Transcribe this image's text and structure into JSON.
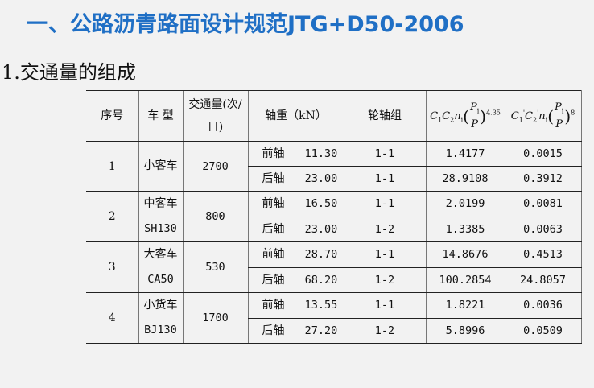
{
  "slide_title": "一、公路沥青路面设计规范JTG+D50-2006",
  "section_title": "1.交通量的组成",
  "table": {
    "headers": {
      "no": "序号",
      "type": "车 型",
      "volume_l1": "交通量(次/",
      "volume_l2": "日)",
      "axle_load": "轴重（kN）",
      "axle_group": "轮轴组",
      "formula1": {
        "c1": "C",
        "s1": "1",
        "c2": "C",
        "s2": "2",
        "n": "n",
        "ni": "i",
        "pi": "P",
        "pis": "i",
        "p": "P",
        "exp": "4.35"
      },
      "formula2": {
        "c1": "C",
        "s1": "1",
        "sup1": "'",
        "c2": "C",
        "s2": "2",
        "sup2": "'",
        "n": "n",
        "ni": "i",
        "pi": "P",
        "pis": "i",
        "p": "P",
        "exp": "8"
      }
    },
    "groups": [
      {
        "no": "1",
        "type_l1": "小客车",
        "type_l2": "",
        "volume": "2700",
        "rows": [
          {
            "axle": "前轴",
            "load": "11.30",
            "group": "1-1",
            "f1": "1.4177",
            "f2": "0.0015"
          },
          {
            "axle": "后轴",
            "load": "23.00",
            "group": "1-1",
            "f1": "28.9108",
            "f2": "0.3912"
          }
        ]
      },
      {
        "no": "2",
        "type_l1": "中客车",
        "type_l2": "SH130",
        "volume": "800",
        "rows": [
          {
            "axle": "前轴",
            "load": "16.50",
            "group": "1-1",
            "f1": "2.0199",
            "f2": "0.0081"
          },
          {
            "axle": "后轴",
            "load": "23.00",
            "group": "1-2",
            "f1": "1.3385",
            "f2": "0.0063"
          }
        ]
      },
      {
        "no": "3",
        "type_l1": "大客车",
        "type_l2": "CA50",
        "volume": "530",
        "rows": [
          {
            "axle": "前轴",
            "load": "28.70",
            "group": "1-1",
            "f1": "14.8676",
            "f2": "0.4513"
          },
          {
            "axle": "后轴",
            "load": "68.20",
            "group": "1-2",
            "f1": "100.2854",
            "f2": "24.8057"
          }
        ]
      },
      {
        "no": "4",
        "type_l1": "小货车",
        "type_l2": "BJ130",
        "volume": "1700",
        "rows": [
          {
            "axle": "前轴",
            "load": "13.55",
            "group": "1-1",
            "f1": "1.8221",
            "f2": "0.0036"
          },
          {
            "axle": "后轴",
            "load": "27.20",
            "group": "1-2",
            "f1": "5.8996",
            "f2": "0.0509"
          }
        ]
      }
    ]
  }
}
